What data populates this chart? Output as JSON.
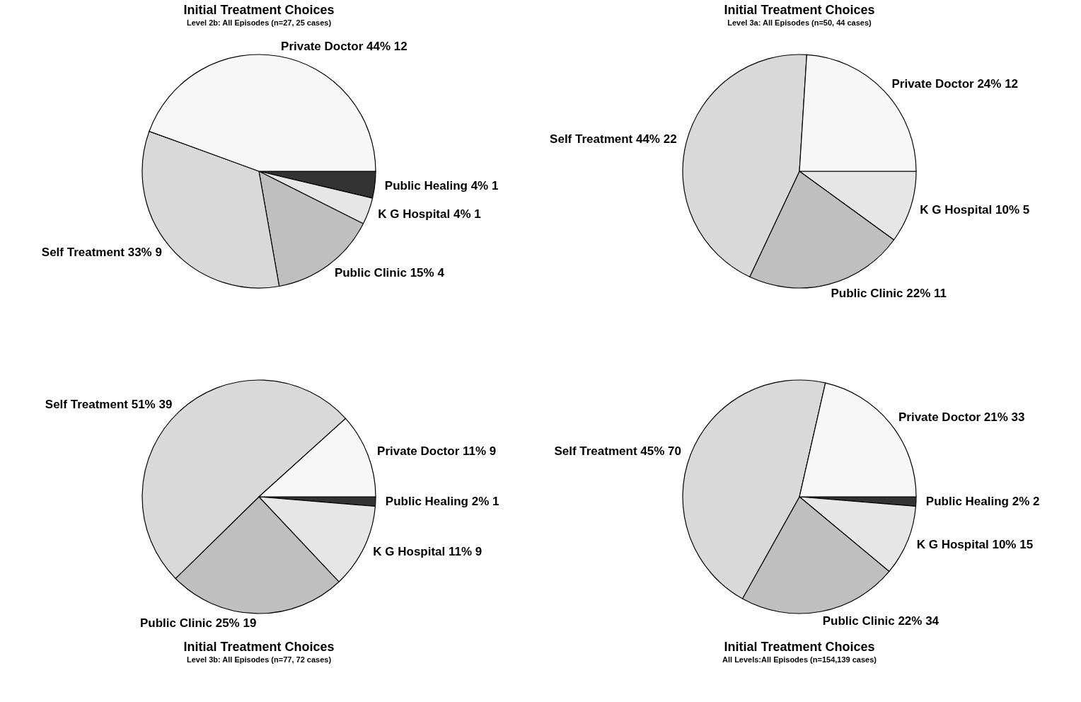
{
  "chart_data": [
    {
      "type": "pie",
      "title": "Initial Treatment Choices",
      "subtitle": "Level 2b: All Episodes (n=27, 25 cases)",
      "categories": [
        "Public Healing",
        "K G Hospital",
        "Public Clinic",
        "Self Treatment",
        "Private Doctor"
      ],
      "values": [
        1,
        1,
        4,
        9,
        12
      ],
      "value_labels": [
        "4% 1",
        "4% 1",
        "15% 4",
        "33% 9",
        "44% 12"
      ],
      "colors": [
        "#333333",
        "#e6e6e6",
        "#bfbfbf",
        "#d9d9d9",
        "#f7f7f7"
      ],
      "legend": false
    },
    {
      "type": "pie",
      "title": "Initial Treatment Choices",
      "subtitle": "Level 3a: All Episodes (n=50, 44 cases)",
      "categories": [
        "K G Hospital",
        "Public Clinic",
        "Self Treatment",
        "Private Doctor"
      ],
      "values": [
        5,
        11,
        22,
        12
      ],
      "value_labels": [
        "10% 5",
        "22% 11",
        "44% 22",
        "24% 12"
      ],
      "colors": [
        "#e6e6e6",
        "#bfbfbf",
        "#d9d9d9",
        "#f7f7f7"
      ],
      "legend": false
    },
    {
      "type": "pie",
      "title": "Initial Treatment Choices",
      "subtitle": "Level 3b: All Episodes (n=77, 72 cases)",
      "categories": [
        "Public Healing",
        "K G Hospital",
        "Public Clinic",
        "Self Treatment",
        "Private Doctor"
      ],
      "values": [
        1,
        9,
        19,
        39,
        9
      ],
      "value_labels": [
        "2% 1",
        "11% 9",
        "25% 19",
        "51% 39",
        "11% 9"
      ],
      "colors": [
        "#333333",
        "#e6e6e6",
        "#bfbfbf",
        "#d9d9d9",
        "#f7f7f7"
      ],
      "legend": false
    },
    {
      "type": "pie",
      "title": "Initial Treatment Choices",
      "subtitle": "All Levels:All Episodes (n=154,139 cases)",
      "categories": [
        "Public Healing",
        "K G Hospital",
        "Public Clinic",
        "Self Treatment",
        "Private Doctor"
      ],
      "values": [
        2,
        15,
        34,
        70,
        33
      ],
      "value_labels": [
        "2% 2",
        "10% 15",
        "22% 34",
        "45% 70",
        "21% 33"
      ],
      "colors": [
        "#333333",
        "#e6e6e6",
        "#bfbfbf",
        "#d9d9d9",
        "#f7f7f7"
      ],
      "legend": false
    }
  ]
}
